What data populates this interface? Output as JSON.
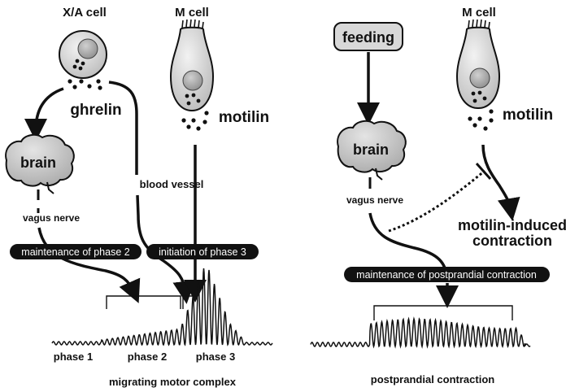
{
  "left": {
    "xa_cell": "X/A cell",
    "m_cell": "M cell",
    "ghrelin": "ghrelin",
    "motilin": "motilin",
    "brain": "brain",
    "vagus_nerve": "vagus nerve",
    "blood_vessel": "blood vessel",
    "pill_phase2": "maintenance of phase 2",
    "pill_phase3": "initiation of phase 3",
    "phase1": "phase 1",
    "phase2": "phase 2",
    "phase3": "phase  3",
    "caption": "migrating motor complex"
  },
  "right": {
    "feeding": "feeding",
    "m_cell": "M cell",
    "motilin": "motilin",
    "brain": "brain",
    "vagus_nerve": "vagus nerve",
    "motilin_induced_line1": "motilin-induced",
    "motilin_induced_line2": "contraction",
    "pill_postprandial": "maintenance of postprandial contraction",
    "caption": "postprandial contraction"
  },
  "colors": {
    "cell_fill": "#d6d6d6",
    "brain_fill": "#c8c8c8",
    "pill_fill": "#111111",
    "line": "#111111"
  }
}
